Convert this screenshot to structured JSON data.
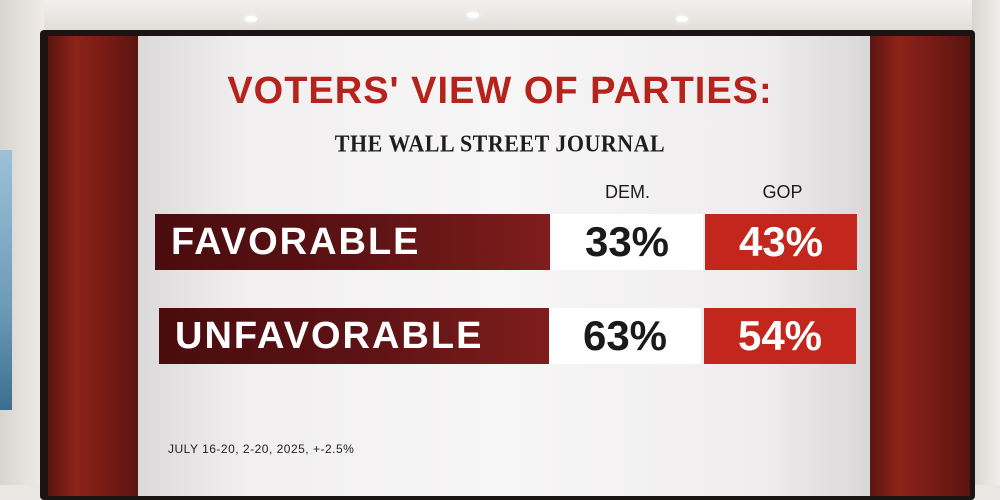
{
  "title": "VOTERS' VIEW OF PARTIES:",
  "source": "THE WALL STREET JOURNAL",
  "columns": {
    "dem": "DEM.",
    "gop": "GOP"
  },
  "rows": [
    {
      "label": "FAVORABLE",
      "dem": "33%",
      "gop": "43%"
    },
    {
      "label": "UNFAVORABLE",
      "dem": "63%",
      "gop": "54%"
    }
  ],
  "footnote": "JULY 16-20, 2-20, 2025, +-2.5%",
  "colors": {
    "accent_red": "#c3261d",
    "label_maroon": "#5c1214",
    "title_red": "#b5231c"
  }
}
